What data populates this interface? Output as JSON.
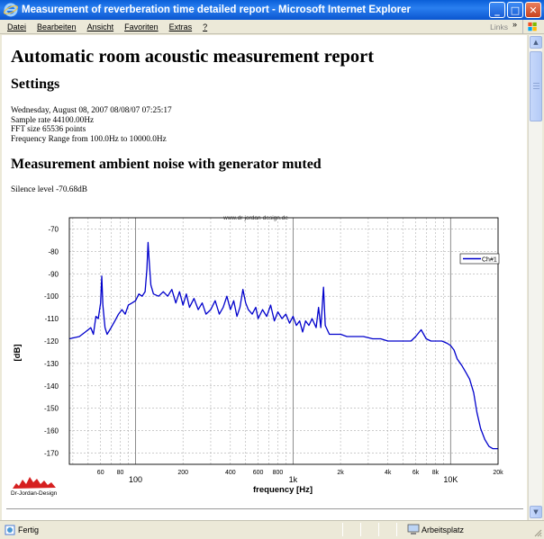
{
  "window": {
    "title": "Measurement of reverberation time detailed report - Microsoft Internet Explorer",
    "minimize": "_",
    "maximize": "□",
    "close": "✕"
  },
  "menu": {
    "items": [
      "Datei",
      "Bearbeiten",
      "Ansicht",
      "Favoriten",
      "Extras",
      "?"
    ],
    "links_label": "Links",
    "links_arrow": "»"
  },
  "page": {
    "title": "Automatic room acoustic measurement report",
    "settings_heading": "Settings",
    "settings_lines": [
      "Wednesday, August 08, 2007 08/08/07 07:25:17",
      "Sample rate 44100.00Hz",
      "FFT size 65536 points",
      "Frequency Range from 100.0Hz to 10000.0Hz"
    ],
    "noise_heading": "Measurement ambient noise with generator muted",
    "silence_level": "Silence level -70.68dB"
  },
  "chart_data": {
    "type": "line",
    "top_label": "www.dr-jordan-design.de",
    "xlabel": "frequency [Hz]",
    "ylabel": "[dB]",
    "x_scale": "log",
    "xlim": [
      38,
      20000
    ],
    "ylim": [
      -175,
      -65
    ],
    "grid": true,
    "legend_position": "top-right",
    "y_ticks": [
      -70,
      -80,
      -90,
      -100,
      -110,
      -120,
      -130,
      -140,
      -150,
      -160,
      -170
    ],
    "x_ticks_minor": [
      {
        "value": 60,
        "label": "60"
      },
      {
        "value": 80,
        "label": "80"
      },
      {
        "value": 200,
        "label": "200"
      },
      {
        "value": 400,
        "label": "400"
      },
      {
        "value": 600,
        "label": "600"
      },
      {
        "value": 800,
        "label": "800"
      },
      {
        "value": 2000,
        "label": "2k"
      },
      {
        "value": 4000,
        "label": "4k"
      },
      {
        "value": 6000,
        "label": "6k"
      },
      {
        "value": 8000,
        "label": "8k"
      },
      {
        "value": 20000,
        "label": "20k"
      }
    ],
    "x_ticks_major": [
      {
        "value": 100,
        "label": "100"
      },
      {
        "value": 1000,
        "label": "1k"
      },
      {
        "value": 10000,
        "label": "10K"
      }
    ],
    "series": [
      {
        "name": "Ch#1",
        "color": "#0000cc",
        "points": [
          [
            38,
            -119
          ],
          [
            44,
            -118
          ],
          [
            48,
            -116
          ],
          [
            52,
            -114
          ],
          [
            54,
            -117
          ],
          [
            56,
            -109
          ],
          [
            58,
            -110
          ],
          [
            60,
            -103
          ],
          [
            61,
            -91
          ],
          [
            62,
            -104
          ],
          [
            64,
            -114
          ],
          [
            66,
            -117
          ],
          [
            70,
            -114
          ],
          [
            74,
            -111
          ],
          [
            78,
            -108
          ],
          [
            82,
            -106
          ],
          [
            86,
            -108
          ],
          [
            90,
            -104
          ],
          [
            95,
            -103
          ],
          [
            100,
            -102
          ],
          [
            105,
            -99
          ],
          [
            110,
            -100
          ],
          [
            115,
            -98
          ],
          [
            118,
            -88
          ],
          [
            120,
            -76
          ],
          [
            122,
            -84
          ],
          [
            125,
            -95
          ],
          [
            130,
            -99
          ],
          [
            140,
            -100
          ],
          [
            150,
            -98
          ],
          [
            160,
            -100
          ],
          [
            170,
            -97
          ],
          [
            180,
            -103
          ],
          [
            190,
            -98
          ],
          [
            200,
            -104
          ],
          [
            210,
            -99
          ],
          [
            220,
            -105
          ],
          [
            235,
            -101
          ],
          [
            250,
            -106
          ],
          [
            265,
            -103
          ],
          [
            280,
            -108
          ],
          [
            300,
            -106
          ],
          [
            320,
            -102
          ],
          [
            340,
            -108
          ],
          [
            360,
            -105
          ],
          [
            380,
            -100
          ],
          [
            400,
            -106
          ],
          [
            420,
            -102
          ],
          [
            440,
            -109
          ],
          [
            460,
            -105
          ],
          [
            480,
            -97
          ],
          [
            500,
            -103
          ],
          [
            520,
            -106
          ],
          [
            550,
            -108
          ],
          [
            580,
            -105
          ],
          [
            600,
            -110
          ],
          [
            640,
            -106
          ],
          [
            680,
            -109
          ],
          [
            720,
            -104
          ],
          [
            760,
            -111
          ],
          [
            800,
            -107
          ],
          [
            850,
            -110
          ],
          [
            900,
            -108
          ],
          [
            950,
            -112
          ],
          [
            1000,
            -109
          ],
          [
            1050,
            -113
          ],
          [
            1100,
            -111
          ],
          [
            1150,
            -116
          ],
          [
            1200,
            -111
          ],
          [
            1260,
            -113
          ],
          [
            1320,
            -110
          ],
          [
            1400,
            -114
          ],
          [
            1450,
            -105
          ],
          [
            1500,
            -114
          ],
          [
            1560,
            -96
          ],
          [
            1600,
            -113
          ],
          [
            1700,
            -117
          ],
          [
            1800,
            -117
          ],
          [
            2000,
            -117
          ],
          [
            2200,
            -118
          ],
          [
            2500,
            -118
          ],
          [
            2800,
            -118
          ],
          [
            3200,
            -119
          ],
          [
            3600,
            -119
          ],
          [
            4000,
            -120
          ],
          [
            4500,
            -120
          ],
          [
            5000,
            -120
          ],
          [
            5600,
            -120
          ],
          [
            6000,
            -118
          ],
          [
            6500,
            -115
          ],
          [
            7000,
            -119
          ],
          [
            7500,
            -120
          ],
          [
            8000,
            -120
          ],
          [
            8800,
            -120
          ],
          [
            9500,
            -121
          ],
          [
            10000,
            -122
          ],
          [
            10500,
            -124
          ],
          [
            11000,
            -128
          ],
          [
            11800,
            -131
          ],
          [
            12500,
            -134
          ],
          [
            13200,
            -137
          ],
          [
            14000,
            -143
          ],
          [
            14700,
            -152
          ],
          [
            15500,
            -159
          ],
          [
            16500,
            -164
          ],
          [
            17500,
            -167
          ],
          [
            18500,
            -168
          ],
          [
            20000,
            -168
          ]
        ]
      }
    ]
  },
  "branding": {
    "logo_text": "Dr-Jordan-Design"
  },
  "status": {
    "left": "Fertig",
    "zone": "Arbeitsplatz"
  }
}
